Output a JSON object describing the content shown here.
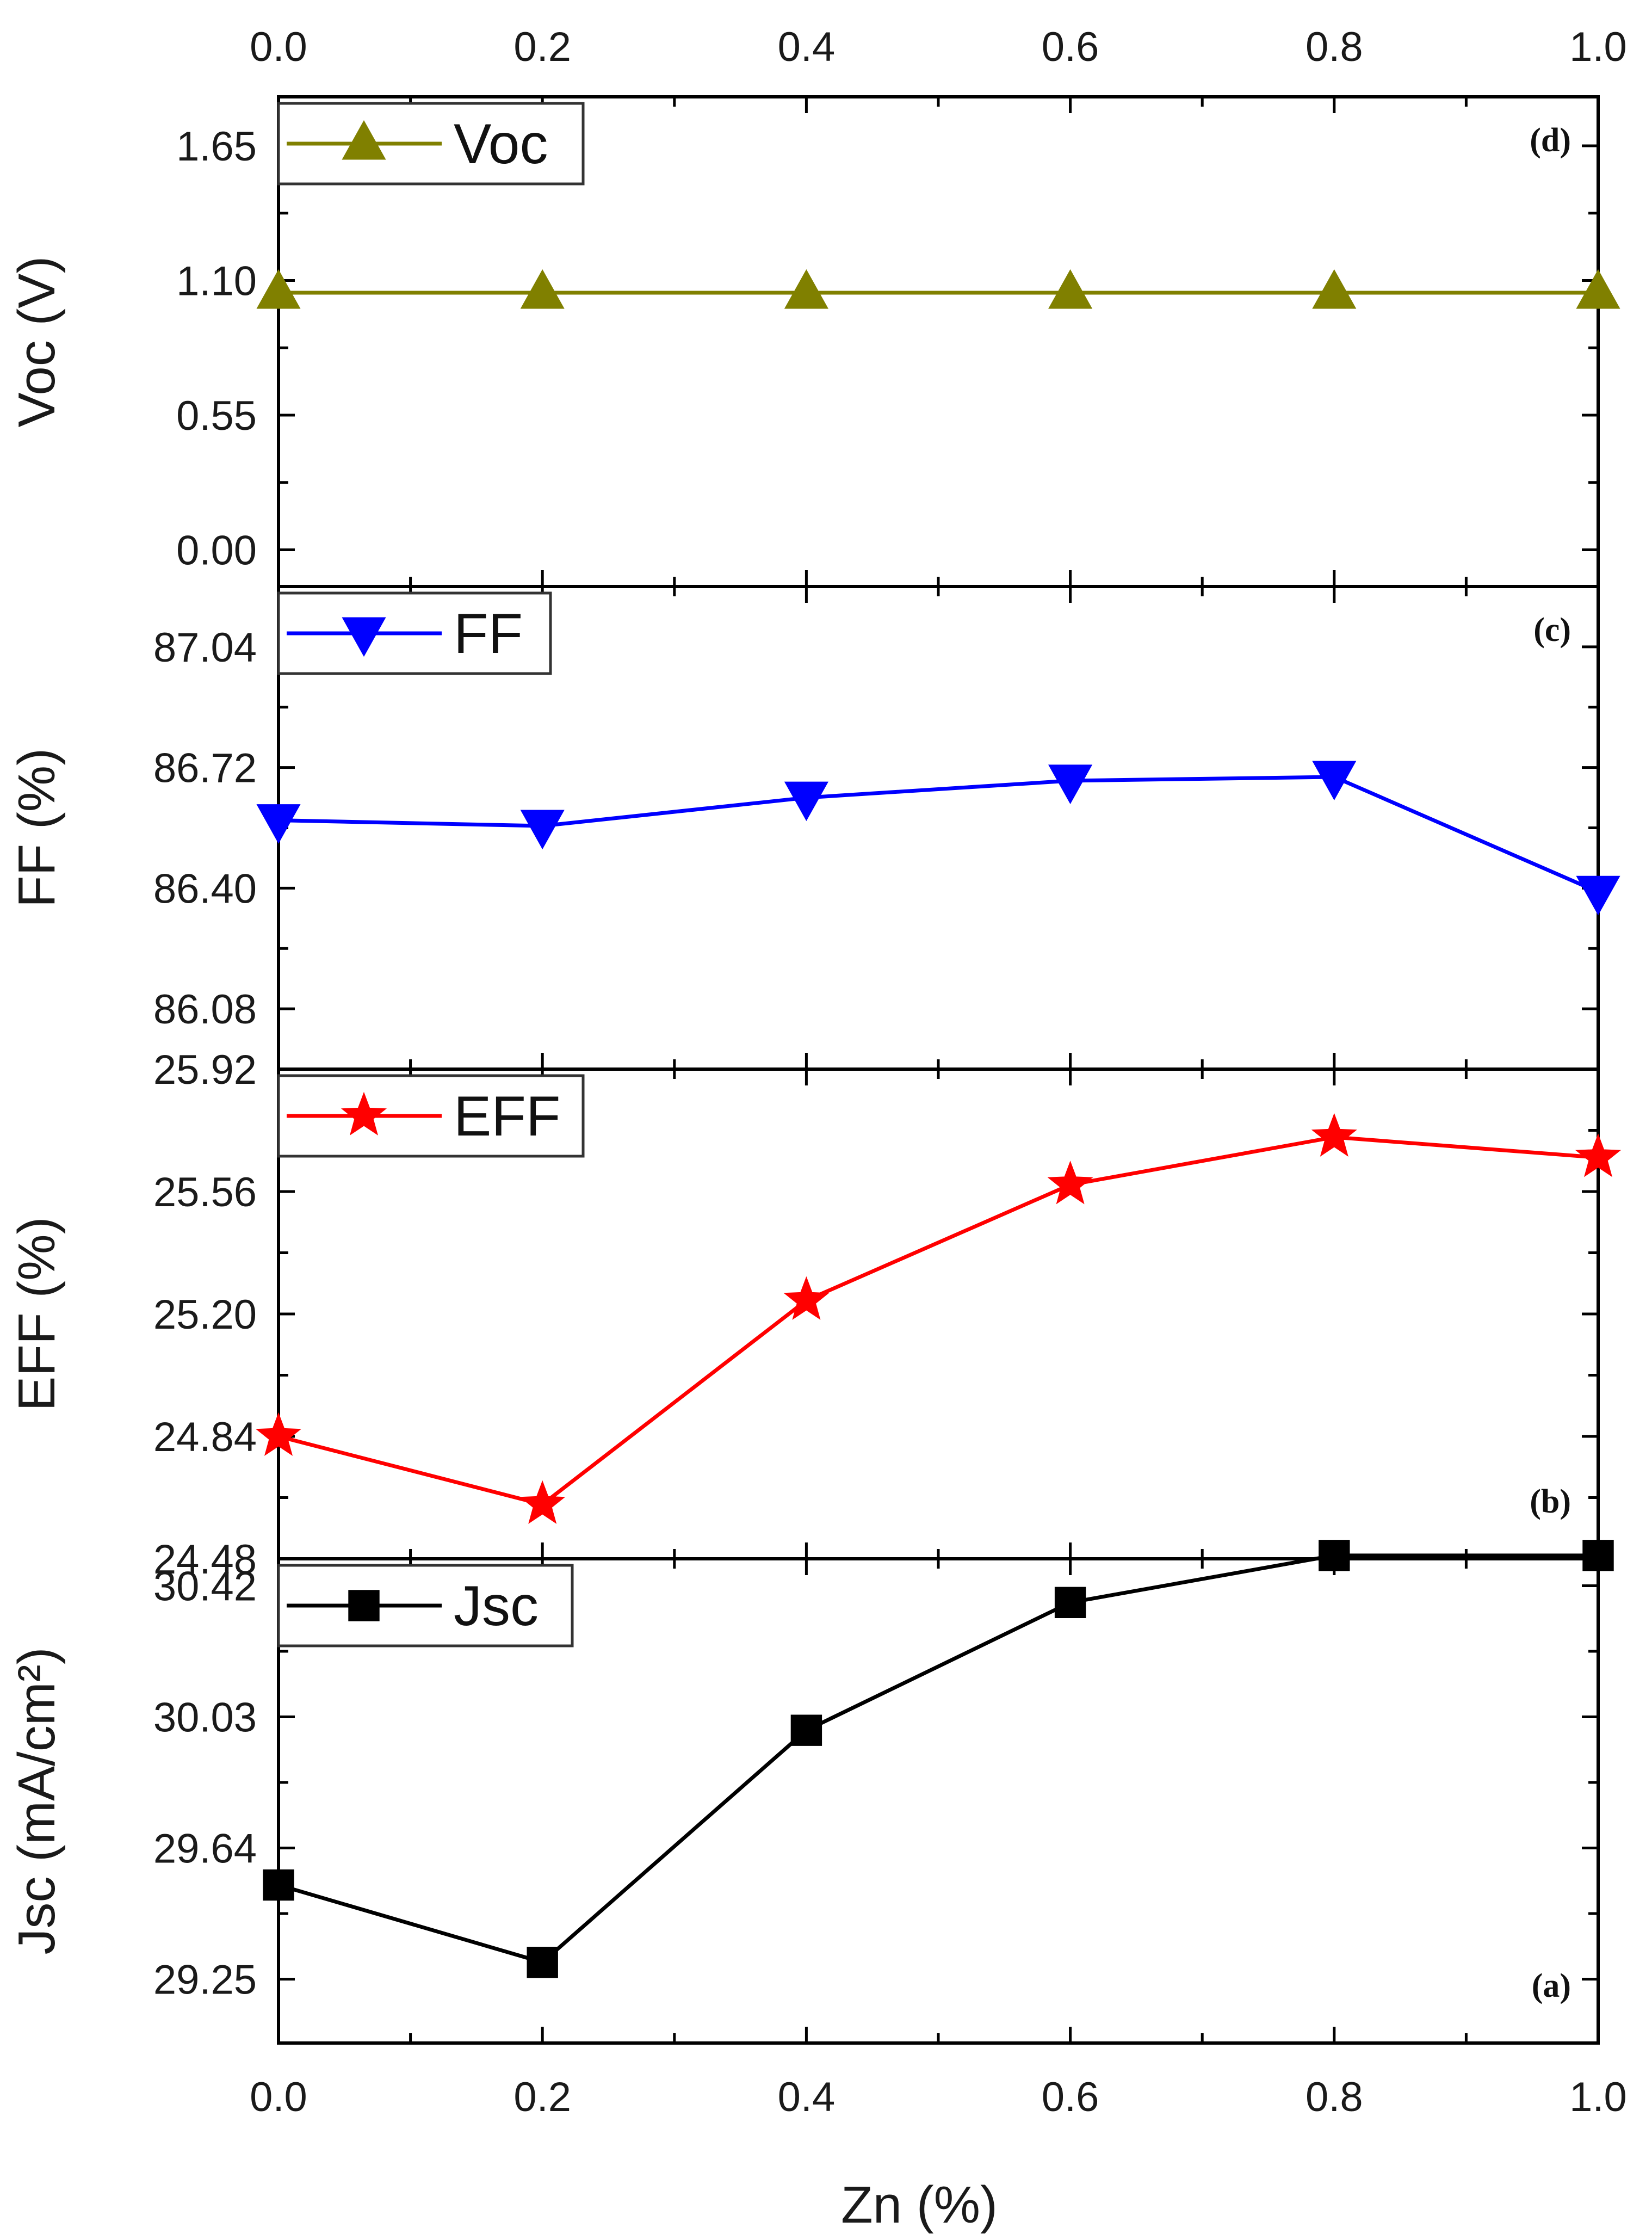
{
  "chart_data": {
    "type": "line",
    "x": [
      0.0,
      0.2,
      0.4,
      0.6,
      0.8,
      1.0
    ],
    "xlabel": "Zn (%)",
    "xticks": [
      "0.0",
      "0.2",
      "0.4",
      "0.6",
      "0.8",
      "1.0"
    ],
    "xlim": [
      0,
      1
    ],
    "panels": [
      {
        "panel_label": "(d)",
        "ylabel": "Voc (V)",
        "ylim": [
          -0.15,
          1.85
        ],
        "yticks": [
          "0.00",
          "0.55",
          "1.10",
          "1.65"
        ],
        "ytick_values": [
          0.0,
          0.55,
          1.1,
          1.65
        ],
        "legend": "Voc",
        "color": "#808000",
        "marker": "triangle-up",
        "values": [
          1.05,
          1.05,
          1.05,
          1.05,
          1.05,
          1.05
        ],
        "legend_position": "top-left",
        "label_position": "top-right"
      },
      {
        "panel_label": "(c)",
        "ylabel": "FF  (%)",
        "ylim": [
          85.92,
          87.2
        ],
        "yticks": [
          "86.08",
          "86.40",
          "86.72",
          "87.04"
        ],
        "ytick_values": [
          86.08,
          86.4,
          86.72,
          87.04
        ],
        "legend": "FF",
        "color": "#0000ff",
        "marker": "triangle-down",
        "values": [
          86.58,
          86.565,
          86.64,
          86.685,
          86.695,
          86.39
        ],
        "legend_position": "top-left",
        "label_position": "top-right"
      },
      {
        "panel_label": "(b)",
        "ylabel": "EFF (%)",
        "ylim": [
          24.48,
          25.92
        ],
        "yticks": [
          "24.48",
          "24.84",
          "25.20",
          "25.56",
          "25.92"
        ],
        "ytick_values": [
          24.48,
          24.84,
          25.2,
          25.56,
          25.92
        ],
        "legend": "EFF",
        "color": "#ff0000",
        "marker": "star",
        "values": [
          24.84,
          24.64,
          25.24,
          25.58,
          25.72,
          25.66
        ],
        "legend_position": "top-left",
        "label_position": "bottom-right"
      },
      {
        "panel_label": "(a)",
        "ylabel": "Jsc (mA/cm²)",
        "ylim": [
          29.06,
          30.5
        ],
        "yticks": [
          "29.25",
          "29.64",
          "30.03",
          "30.42"
        ],
        "ytick_values": [
          29.25,
          29.64,
          30.03,
          30.42
        ],
        "legend": "Jsc",
        "color": "#000000",
        "marker": "square",
        "values": [
          29.53,
          29.3,
          29.99,
          30.37,
          30.51,
          30.51
        ],
        "legend_position": "top-left",
        "label_position": "bottom-right"
      }
    ]
  }
}
